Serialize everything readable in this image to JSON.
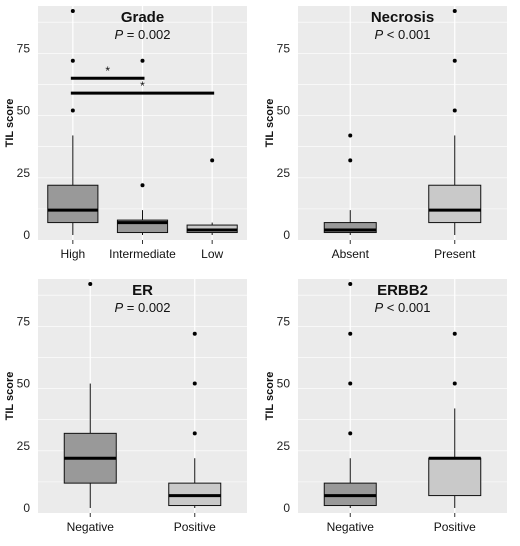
{
  "chart_data": [
    {
      "type": "box",
      "title": "Grade",
      "p_value": "= 0.002",
      "ylabel": "TIL score",
      "ylim": [
        -2,
        92
      ],
      "yticks": [
        0,
        25,
        50,
        75
      ],
      "grid": true,
      "categories": [
        "High",
        "Intermediate",
        "Low"
      ],
      "fill_colors": [
        "#999999",
        "#999999",
        "#c9c9c9"
      ],
      "boxes": [
        {
          "whisker_low": 0,
          "q1": 5,
          "median": 10,
          "q3": 20,
          "whisker_high": 40,
          "outliers": [
            50,
            70,
            90
          ]
        },
        {
          "whisker_low": 0,
          "q1": 1,
          "median": 5,
          "q3": 6,
          "whisker_high": 10,
          "outliers": [
            20,
            70
          ]
        },
        {
          "whisker_low": 0,
          "q1": 1,
          "median": 2,
          "q3": 4,
          "whisker_high": 5,
          "outliers": [
            30
          ]
        }
      ],
      "brackets": [
        {
          "from": 0,
          "to": 1,
          "y": 63,
          "label": "*"
        },
        {
          "from": 0,
          "to": 2,
          "y": 57,
          "label": "*"
        }
      ]
    },
    {
      "type": "box",
      "title": "Necrosis",
      "p_value": "< 0.001",
      "ylabel": "TIL score",
      "ylim": [
        -2,
        92
      ],
      "yticks": [
        0,
        25,
        50,
        75
      ],
      "grid": true,
      "categories": [
        "Absent",
        "Present"
      ],
      "fill_colors": [
        "#999999",
        "#c9c9c9"
      ],
      "boxes": [
        {
          "whisker_low": 0,
          "q1": 1,
          "median": 2,
          "q3": 5,
          "whisker_high": 10,
          "outliers": [
            30,
            40
          ]
        },
        {
          "whisker_low": 0,
          "q1": 5,
          "median": 10,
          "q3": 20,
          "whisker_high": 40,
          "outliers": [
            50,
            70,
            90
          ]
        }
      ],
      "brackets": []
    },
    {
      "type": "box",
      "title": "ER",
      "p_value": "= 0.002",
      "ylabel": "TIL score",
      "ylim": [
        -2,
        92
      ],
      "yticks": [
        0,
        25,
        50,
        75
      ],
      "grid": true,
      "categories": [
        "Negative",
        "Positive"
      ],
      "fill_colors": [
        "#999999",
        "#c9c9c9"
      ],
      "boxes": [
        {
          "whisker_low": 0,
          "q1": 10,
          "median": 20,
          "q3": 30,
          "whisker_high": 50,
          "outliers": [
            90
          ]
        },
        {
          "whisker_low": 0,
          "q1": 1,
          "median": 5,
          "q3": 10,
          "whisker_high": 20,
          "outliers": [
            30,
            50,
            70
          ]
        }
      ],
      "brackets": []
    },
    {
      "type": "box",
      "title": "ERBB2",
      "p_value": "< 0.001",
      "ylabel": "TIL score",
      "ylim": [
        -2,
        92
      ],
      "yticks": [
        0,
        25,
        50,
        75
      ],
      "grid": true,
      "categories": [
        "Negative",
        "Positive"
      ],
      "fill_colors": [
        "#999999",
        "#c9c9c9"
      ],
      "boxes": [
        {
          "whisker_low": 0,
          "q1": 1,
          "median": 5,
          "q3": 10,
          "whisker_high": 20,
          "outliers": [
            30,
            50,
            70,
            90
          ]
        },
        {
          "whisker_low": 0,
          "q1": 5,
          "median": 20,
          "q3": 20,
          "whisker_high": 40,
          "outliers": [
            50,
            70
          ]
        }
      ],
      "brackets": []
    }
  ]
}
